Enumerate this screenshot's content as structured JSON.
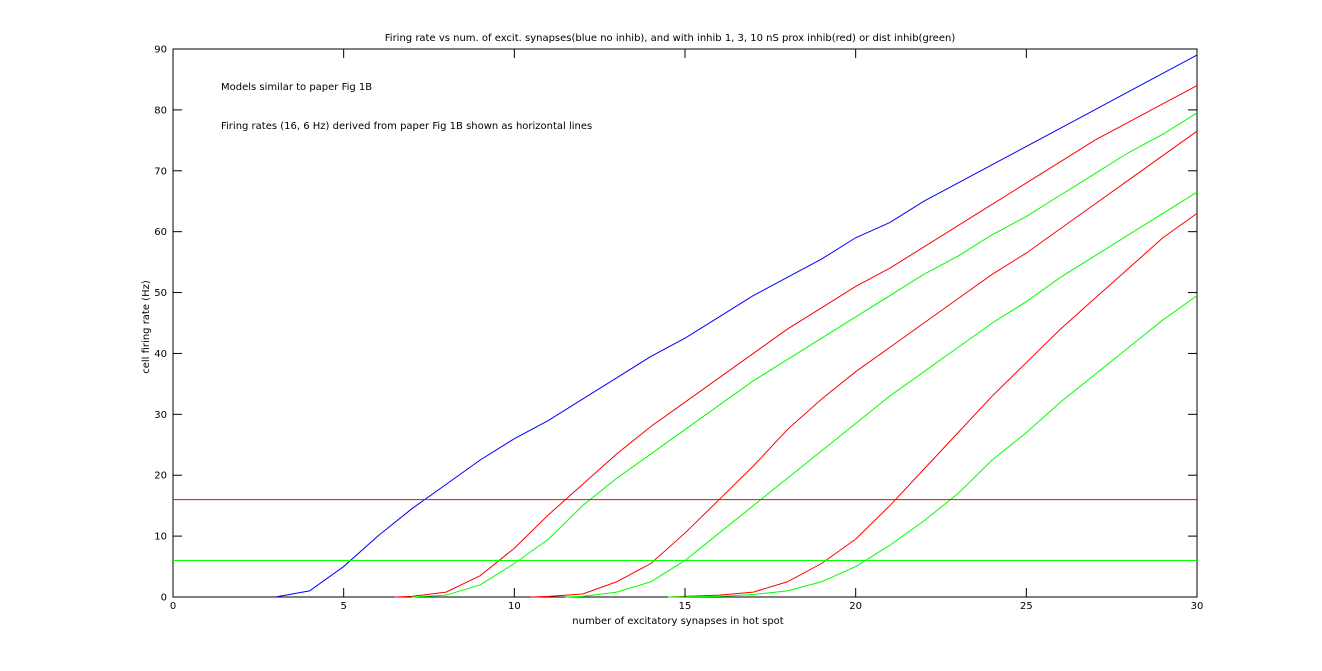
{
  "chart_data": {
    "type": "line",
    "title": "Firing rate vs num. of excit. synapses(blue no inhib), and with inhib 1, 3, 10 nS prox inhib(red) or dist inhib(green)",
    "xlabel": "number of excitatory synapses in hot spot",
    "ylabel": "cell firing rate (Hz)",
    "xlim": [
      0,
      30
    ],
    "ylim": [
      0,
      90
    ],
    "xticks": [
      0,
      5,
      10,
      15,
      20,
      25,
      30
    ],
    "yticks": [
      0,
      10,
      20,
      30,
      40,
      50,
      60,
      70,
      80,
      90
    ],
    "grid": false,
    "annotations": [
      "Models similar to paper Fig 1B",
      "Firing rates (16, 6 Hz) derived from paper Fig 1B shown as horizontal lines"
    ],
    "series": [
      {
        "color": "#0000ff",
        "x": [
          3,
          4,
          5,
          6,
          7,
          8,
          9,
          10,
          11,
          12,
          13,
          14,
          15,
          16,
          17,
          18,
          19,
          20,
          21,
          22,
          23,
          24,
          25,
          26,
          27,
          28,
          29,
          30
        ],
        "y": [
          0,
          1,
          5,
          10,
          14.5,
          18.5,
          22.5,
          26,
          29,
          32.5,
          36,
          39.5,
          42.5,
          46,
          49.5,
          52.5,
          55.5,
          59,
          61.5,
          65,
          68,
          71,
          74,
          77,
          80,
          83,
          86,
          89
        ]
      },
      {
        "color": "#ff0000",
        "x": [
          6.5,
          7,
          8,
          9,
          10,
          11,
          12,
          13,
          14,
          15,
          16,
          17,
          18,
          19,
          20,
          21,
          22,
          23,
          24,
          25,
          26,
          27,
          28,
          29,
          30
        ],
        "y": [
          0,
          0.1,
          0.8,
          3.5,
          8,
          13.5,
          18.5,
          23.5,
          28,
          32,
          36,
          40,
          44,
          47.5,
          51,
          54,
          57.5,
          61,
          64.5,
          68,
          71.5,
          75,
          78,
          81,
          84
        ]
      },
      {
        "color": "#00ff00",
        "x": [
          7,
          8,
          9,
          10,
          11,
          12,
          13,
          14,
          15,
          16,
          17,
          18,
          19,
          20,
          21,
          22,
          23,
          24,
          25,
          26,
          27,
          28,
          29,
          30
        ],
        "y": [
          0,
          0.3,
          2,
          5.5,
          9.5,
          15,
          19.5,
          23.5,
          27.5,
          31.5,
          35.5,
          39,
          42.5,
          46,
          49.5,
          53,
          56,
          59.5,
          62.5,
          66,
          69.5,
          73,
          76,
          79.5
        ]
      },
      {
        "color": "#ff0000",
        "x": [
          10.5,
          11,
          12,
          13,
          14,
          15,
          16,
          17,
          18,
          19,
          20,
          21,
          22,
          23,
          24,
          25,
          26,
          27,
          28,
          29,
          30
        ],
        "y": [
          0,
          0.1,
          0.5,
          2.5,
          5.5,
          10.5,
          16,
          21.5,
          27.5,
          32.5,
          37,
          41,
          45,
          49,
          53,
          56.5,
          60.5,
          64.5,
          68.5,
          72.5,
          76.5
        ]
      },
      {
        "color": "#00ff00",
        "x": [
          11.5,
          12,
          13,
          14,
          15,
          16,
          17,
          18,
          19,
          20,
          21,
          22,
          23,
          24,
          25,
          26,
          27,
          28,
          29,
          30
        ],
        "y": [
          0,
          0.1,
          0.8,
          2.5,
          6,
          10.5,
          15,
          19.5,
          24,
          28.5,
          33,
          37,
          41,
          45,
          48.5,
          52.5,
          56,
          59.5,
          63,
          66.5
        ]
      },
      {
        "color": "#ff0000",
        "x": [
          14.5,
          15,
          16,
          17,
          18,
          19,
          20,
          21,
          22,
          23,
          24,
          25,
          26,
          27,
          28,
          29,
          30
        ],
        "y": [
          0,
          0.1,
          0.3,
          0.8,
          2.5,
          5.5,
          9.5,
          15,
          21,
          27,
          33,
          38.5,
          44,
          49,
          54,
          59,
          63
        ]
      },
      {
        "color": "#00ff00",
        "x": [
          14.5,
          15,
          16,
          17,
          18,
          19,
          20,
          21,
          22,
          23,
          24,
          25,
          26,
          27,
          28,
          29,
          30
        ],
        "y": [
          0,
          0.05,
          0.1,
          0.4,
          1,
          2.5,
          5,
          8.5,
          12.5,
          17,
          22.5,
          27,
          32,
          36.5,
          41,
          45.5,
          49.5
        ]
      },
      {
        "color": "#ff0000",
        "x": [
          0,
          30
        ],
        "y": [
          16,
          16
        ]
      },
      {
        "color": "#00ff00",
        "x": [
          0,
          30
        ],
        "y": [
          6,
          6
        ]
      }
    ]
  }
}
